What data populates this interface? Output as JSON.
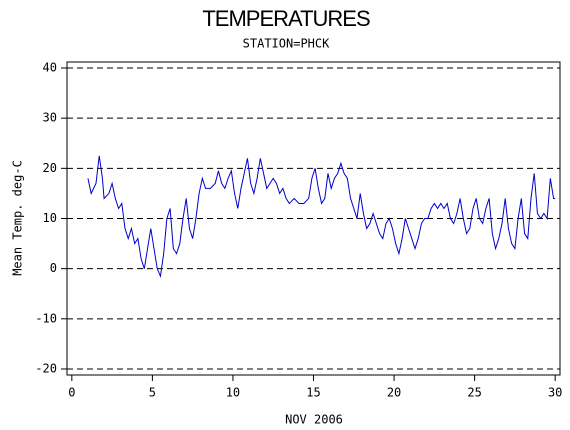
{
  "chart_data": {
    "type": "line",
    "title": "TEMPERATURES",
    "subtitle": "STATION=PHCK",
    "x_label": "NOV 2006",
    "y_label": "Mean Temp. deg-C",
    "color": "#0000cc",
    "grid": true,
    "xlim": [
      -0.3,
      30.3
    ],
    "ylim": [
      -21.2,
      41.2
    ],
    "xticks": [
      0,
      5,
      10,
      15,
      20,
      25,
      30
    ],
    "yticks": [
      -20,
      -10,
      0,
      10,
      20,
      30,
      40
    ],
    "x": [
      1,
      1.2,
      1.5,
      1.7,
      1.9,
      2.0,
      2.3,
      2.5,
      2.7,
      2.9,
      3.1,
      3.3,
      3.5,
      3.7,
      3.9,
      4.1,
      4.3,
      4.5,
      4.7,
      4.9,
      5.1,
      5.3,
      5.5,
      5.7,
      5.9,
      6.1,
      6.3,
      6.5,
      6.7,
      6.9,
      7.1,
      7.3,
      7.5,
      7.7,
      7.9,
      8.1,
      8.3,
      8.6,
      8.9,
      9.1,
      9.3,
      9.5,
      9.7,
      9.9,
      10.1,
      10.3,
      10.5,
      10.7,
      10.9,
      11.1,
      11.3,
      11.5,
      11.7,
      11.9,
      12.1,
      12.3,
      12.5,
      12.7,
      12.9,
      13.1,
      13.3,
      13.5,
      13.8,
      14.1,
      14.4,
      14.7,
      14.9,
      15.1,
      15.3,
      15.5,
      15.7,
      15.9,
      16.1,
      16.3,
      16.5,
      16.7,
      16.9,
      17.1,
      17.3,
      17.5,
      17.7,
      17.9,
      18.1,
      18.3,
      18.5,
      18.7,
      18.9,
      19.1,
      19.3,
      19.5,
      19.7,
      19.9,
      20.1,
      20.3,
      20.5,
      20.7,
      20.9,
      21.1,
      21.3,
      21.5,
      21.7,
      21.9,
      22.1,
      22.3,
      22.5,
      22.7,
      22.9,
      23.1,
      23.3,
      23.5,
      23.7,
      23.9,
      24.1,
      24.3,
      24.5,
      24.7,
      24.9,
      25.1,
      25.3,
      25.5,
      25.7,
      25.9,
      26.1,
      26.3,
      26.5,
      26.7,
      26.9,
      27.1,
      27.3,
      27.5,
      27.7,
      27.9,
      28.1,
      28.3,
      28.5,
      28.7,
      28.9,
      29.1,
      29.3,
      29.5,
      29.7,
      29.9,
      30.0
    ],
    "values": [
      18,
      15,
      17,
      22.5,
      18,
      14,
      15,
      17,
      14,
      12,
      13,
      8,
      6,
      8,
      5,
      6,
      2,
      0,
      4,
      8,
      4,
      0,
      -1.5,
      3,
      10,
      12,
      4,
      3,
      5,
      10,
      14,
      8,
      6,
      10,
      15,
      18,
      16,
      16,
      17,
      19.5,
      17,
      16,
      18,
      19.5,
      15,
      12,
      16,
      19,
      22,
      17,
      15,
      18,
      22,
      19,
      16,
      17,
      18,
      17,
      15,
      16,
      14,
      13,
      14,
      13,
      13,
      14,
      18,
      20,
      16,
      13,
      14,
      19,
      16,
      18,
      19,
      21,
      19,
      18,
      14,
      12,
      10,
      15,
      11,
      8,
      9,
      11,
      9,
      7,
      6,
      9,
      10,
      8,
      5,
      3,
      6,
      10,
      8,
      6,
      4,
      6,
      9,
      10,
      10,
      12,
      13,
      12,
      13,
      12,
      13,
      10,
      9,
      11,
      14,
      10,
      7,
      8,
      12,
      14,
      10,
      9,
      12,
      14,
      7,
      4,
      6,
      9,
      14,
      8,
      5,
      4,
      10,
      14,
      7,
      6,
      14,
      19,
      11,
      10,
      11,
      10,
      18,
      14,
      14
    ]
  }
}
